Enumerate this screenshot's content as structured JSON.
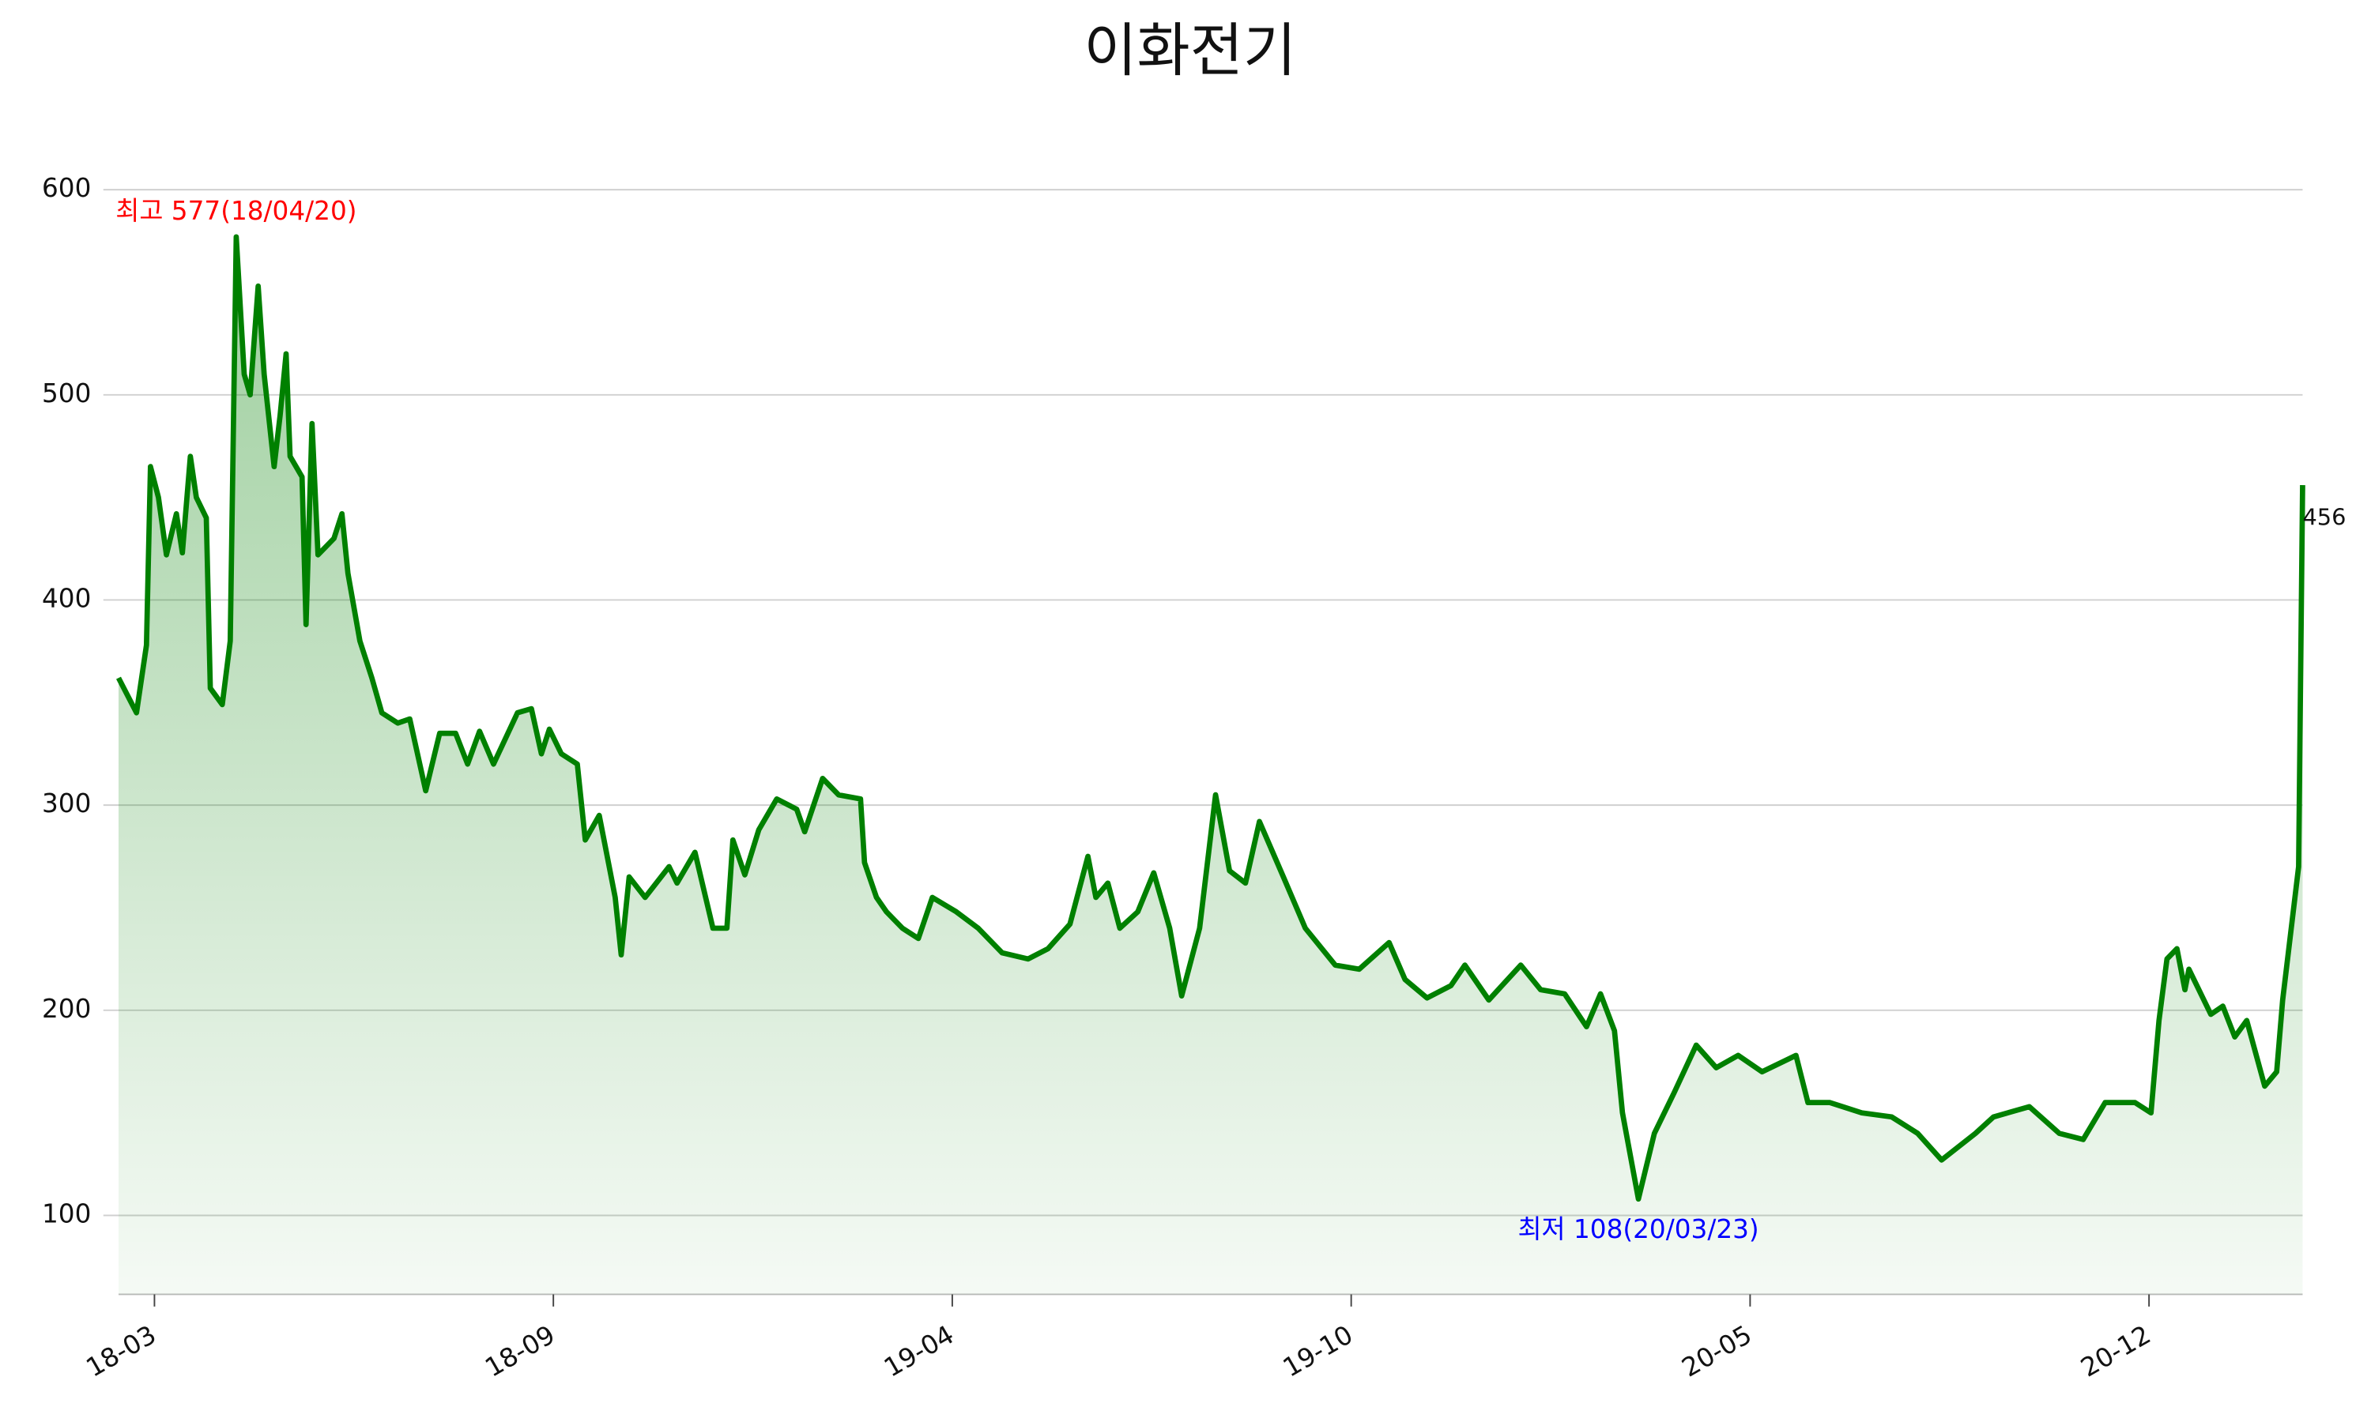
{
  "chart_data": {
    "type": "area-line",
    "title": "이화전기",
    "color": "#008000",
    "grid": true,
    "x": [
      "2018-02-20",
      "2018-03-01",
      "2018-03-06",
      "2018-03-08",
      "2018-03-12",
      "2018-03-16",
      "2018-03-21",
      "2018-03-24",
      "2018-03-28",
      "2018-03-31",
      "2018-04-05",
      "2018-04-07",
      "2018-04-13",
      "2018-04-17",
      "2018-04-20",
      "2018-04-24",
      "2018-04-27",
      "2018-05-01",
      "2018-05-04",
      "2018-05-09",
      "2018-05-12",
      "2018-05-15",
      "2018-05-17",
      "2018-05-23",
      "2018-05-25",
      "2018-05-28",
      "2018-05-31",
      "2018-06-08",
      "2018-06-12",
      "2018-06-15",
      "2018-06-21",
      "2018-06-27",
      "2018-07-02",
      "2018-07-10",
      "2018-07-16",
      "2018-07-24",
      "2018-07-31",
      "2018-08-08",
      "2018-08-14",
      "2018-08-20",
      "2018-08-27",
      "2018-09-08",
      "2018-09-15",
      "2018-09-20",
      "2018-09-24",
      "2018-09-30",
      "2018-10-08",
      "2018-10-12",
      "2018-10-19",
      "2018-10-27",
      "2018-10-30",
      "2018-11-03",
      "2018-11-11",
      "2018-11-23",
      "2018-11-27",
      "2018-12-06",
      "2018-12-15",
      "2018-12-22",
      "2018-12-25",
      "2018-12-31",
      "2019-01-07",
      "2019-01-16",
      "2019-01-26",
      "2019-01-30",
      "2019-02-08",
      "2019-02-16",
      "2019-02-27",
      "2019-03-01",
      "2019-03-07",
      "2019-03-12",
      "2019-03-20",
      "2019-03-28",
      "2019-04-04",
      "2019-04-16",
      "2019-04-27",
      "2019-05-09",
      "2019-05-22",
      "2019-06-01",
      "2019-06-12",
      "2019-06-21",
      "2019-06-25",
      "2019-07-01",
      "2019-07-07",
      "2019-07-16",
      "2019-07-24",
      "2019-08-01",
      "2019-08-07",
      "2019-08-16",
      "2019-08-24",
      "2019-08-31",
      "2019-09-08",
      "2019-09-15",
      "2019-09-27",
      "2019-10-08",
      "2019-10-23",
      "2019-11-04",
      "2019-11-19",
      "2019-11-27",
      "2019-12-08",
      "2019-12-20",
      "2019-12-27",
      "2020-01-08",
      "2020-01-24",
      "2020-02-03",
      "2020-02-15",
      "2020-02-26",
      "2020-03-04",
      "2020-03-11",
      "2020-03-15",
      "2020-03-23",
      "2020-03-31",
      "2020-04-10",
      "2020-04-21",
      "2020-05-01",
      "2020-05-12",
      "2020-05-24",
      "2020-06-10",
      "2020-06-16",
      "2020-06-27",
      "2020-07-13",
      "2020-07-28",
      "2020-08-10",
      "2020-08-22",
      "2020-09-08",
      "2020-09-17",
      "2020-10-05",
      "2020-10-20",
      "2020-11-01",
      "2020-11-12",
      "2020-11-27",
      "2020-12-05",
      "2020-12-09",
      "2020-12-13",
      "2020-12-18",
      "2020-12-22",
      "2020-12-24",
      "2021-01-04",
      "2021-01-10",
      "2021-01-16",
      "2021-01-22",
      "2021-01-31",
      "2021-02-06",
      "2021-02-09",
      "2021-02-17",
      "2021-02-19"
    ],
    "values": [
      362,
      345,
      378,
      465,
      450,
      422,
      442,
      423,
      470,
      450,
      440,
      357,
      349,
      380,
      577,
      510,
      500,
      553,
      510,
      465,
      490,
      520,
      470,
      460,
      388,
      486,
      422,
      430,
      442,
      413,
      380,
      362,
      345,
      340,
      342,
      307,
      335,
      335,
      320,
      336,
      320,
      345,
      347,
      325,
      337,
      325,
      320,
      283,
      295,
      255,
      227,
      265,
      255,
      270,
      262,
      277,
      240,
      240,
      283,
      266,
      288,
      303,
      298,
      287,
      313,
      305,
      303,
      272,
      255,
      248,
      240,
      235,
      255,
      248,
      240,
      228,
      225,
      230,
      242,
      275,
      255,
      262,
      240,
      248,
      267,
      240,
      207,
      240,
      305,
      268,
      262,
      292,
      265,
      240,
      222,
      220,
      233,
      215,
      206,
      212,
      222,
      205,
      222,
      210,
      208,
      192,
      208,
      190,
      150,
      108,
      140,
      160,
      183,
      172,
      178,
      170,
      178,
      155,
      155,
      150,
      148,
      140,
      127,
      140,
      148,
      153,
      140,
      137,
      155,
      155,
      150,
      195,
      225,
      230,
      210,
      220,
      198,
      202,
      187,
      195,
      163,
      170,
      205,
      270,
      456
    ],
    "xlim": [
      "2018-02-20",
      "2021-02-19"
    ],
    "xticks": [
      {
        "value": "2018-03-10",
        "label": "18-03"
      },
      {
        "value": "2018-09-26",
        "label": "18-09"
      },
      {
        "value": "2019-04-14",
        "label": "19-04"
      },
      {
        "value": "2019-10-31",
        "label": "19-10"
      },
      {
        "value": "2020-05-18",
        "label": "20-05"
      },
      {
        "value": "2020-12-04",
        "label": "20-12"
      }
    ],
    "ylim": [
      61.5,
      611
    ],
    "yticks": [
      100,
      200,
      300,
      400,
      500,
      600
    ],
    "annotations": [
      {
        "text": "최고 577(18/04/20)",
        "color": "#ff0000",
        "at": "max"
      },
      {
        "text": "최저 108(20/03/23)",
        "color": "#0000ff",
        "at": "min"
      }
    ]
  }
}
